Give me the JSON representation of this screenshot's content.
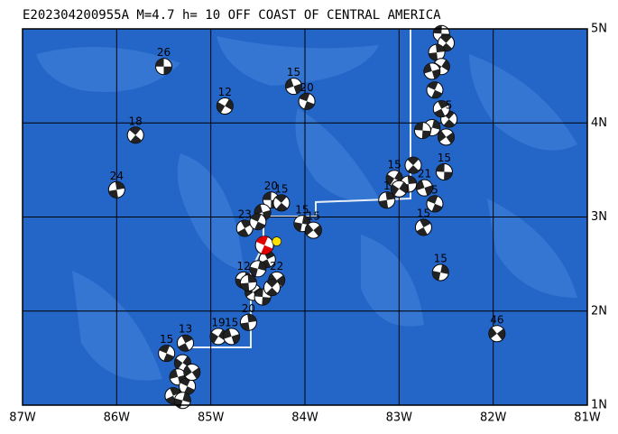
{
  "map": {
    "title": "E202304200955A M=4.7 h= 10 OFF COAST OF CENTRAL AMERICA",
    "xlim": [
      -87,
      -81
    ],
    "ylim": [
      1,
      5
    ],
    "xticks": [
      {
        "value": -87,
        "label": "87W"
      },
      {
        "value": -86,
        "label": "86W"
      },
      {
        "value": -85,
        "label": "85W"
      },
      {
        "value": -84,
        "label": "84W"
      },
      {
        "value": -83,
        "label": "83W"
      },
      {
        "value": -82,
        "label": "82W"
      },
      {
        "value": -81,
        "label": "81W"
      }
    ],
    "yticks": [
      {
        "value": 1,
        "label": "1N"
      },
      {
        "value": 2,
        "label": "2N"
      },
      {
        "value": 3,
        "label": "3N"
      },
      {
        "value": 4,
        "label": "4N"
      },
      {
        "value": 5,
        "label": "5N"
      }
    ],
    "grid": true,
    "events": [
      {
        "lon": -85.5,
        "lat": 4.6,
        "label": "26"
      },
      {
        "lon": -85.8,
        "lat": 3.87,
        "label": "18"
      },
      {
        "lon": -86.0,
        "lat": 3.29,
        "label": "24"
      },
      {
        "lon": -84.85,
        "lat": 4.18,
        "label": "12"
      },
      {
        "lon": -84.12,
        "lat": 4.39,
        "label": "15"
      },
      {
        "lon": -83.98,
        "lat": 4.23,
        "label": "20"
      },
      {
        "lon": -84.64,
        "lat": 2.88,
        "label": "23"
      },
      {
        "lon": -84.03,
        "lat": 2.93,
        "label": "15"
      },
      {
        "lon": -83.91,
        "lat": 2.86,
        "label": "15"
      },
      {
        "lon": -84.36,
        "lat": 3.18,
        "label": "20"
      },
      {
        "lon": -84.25,
        "lat": 3.15,
        "label": "15"
      },
      {
        "lon": -83.13,
        "lat": 3.18,
        "label": "1"
      },
      {
        "lon": -83.05,
        "lat": 3.41,
        "label": "15"
      },
      {
        "lon": -82.73,
        "lat": 3.31,
        "label": "21"
      },
      {
        "lon": -82.62,
        "lat": 3.14,
        "label": "5"
      },
      {
        "lon": -82.74,
        "lat": 2.89,
        "label": "15"
      },
      {
        "lon": -82.56,
        "lat": 2.41,
        "label": "15"
      },
      {
        "lon": -81.96,
        "lat": 1.76,
        "label": "46"
      },
      {
        "lon": -82.52,
        "lat": 3.48,
        "label": "15"
      },
      {
        "lon": -82.47,
        "lat": 4.04,
        "label": "5"
      },
      {
        "lon": -84.6,
        "lat": 1.88,
        "label": "20"
      },
      {
        "lon": -84.92,
        "lat": 1.73,
        "label": "19"
      },
      {
        "lon": -84.78,
        "lat": 1.73,
        "label": "15"
      },
      {
        "lon": -85.47,
        "lat": 1.55,
        "label": "15"
      },
      {
        "lon": -85.27,
        "lat": 1.66,
        "label": "13"
      },
      {
        "lon": -84.65,
        "lat": 2.33,
        "label": "12"
      },
      {
        "lon": -84.3,
        "lat": 2.33,
        "label": "22"
      },
      {
        "lon": -82.55,
        "lat": 4.95
      },
      {
        "lon": -82.5,
        "lat": 4.85
      },
      {
        "lon": -82.6,
        "lat": 4.75
      },
      {
        "lon": -82.55,
        "lat": 4.6
      },
      {
        "lon": -82.65,
        "lat": 4.55
      },
      {
        "lon": -82.62,
        "lat": 4.35
      },
      {
        "lon": -82.55,
        "lat": 4.15
      },
      {
        "lon": -82.65,
        "lat": 3.95
      },
      {
        "lon": -82.5,
        "lat": 3.85
      },
      {
        "lon": -82.75,
        "lat": 3.92
      },
      {
        "lon": -82.85,
        "lat": 3.55
      },
      {
        "lon": -82.9,
        "lat": 3.35
      },
      {
        "lon": -83.0,
        "lat": 3.3
      },
      {
        "lon": -84.45,
        "lat": 3.05
      },
      {
        "lon": -84.5,
        "lat": 2.95
      },
      {
        "lon": -84.4,
        "lat": 2.55
      },
      {
        "lon": -84.5,
        "lat": 2.45
      },
      {
        "lon": -84.55,
        "lat": 2.2
      },
      {
        "lon": -84.45,
        "lat": 2.15
      },
      {
        "lon": -84.35,
        "lat": 2.25
      },
      {
        "lon": -84.6,
        "lat": 2.3
      },
      {
        "lon": -85.3,
        "lat": 1.45
      },
      {
        "lon": -85.35,
        "lat": 1.3
      },
      {
        "lon": -85.25,
        "lat": 1.2
      },
      {
        "lon": -85.4,
        "lat": 1.1
      },
      {
        "lon": -85.3,
        "lat": 1.05
      },
      {
        "lon": -85.2,
        "lat": 1.35
      }
    ],
    "main_event": {
      "lon": -84.43,
      "lat": 2.7,
      "color": "#e00000"
    },
    "epicenter": {
      "lon": -84.3,
      "lat": 2.74,
      "color": "#ffe000"
    }
  }
}
